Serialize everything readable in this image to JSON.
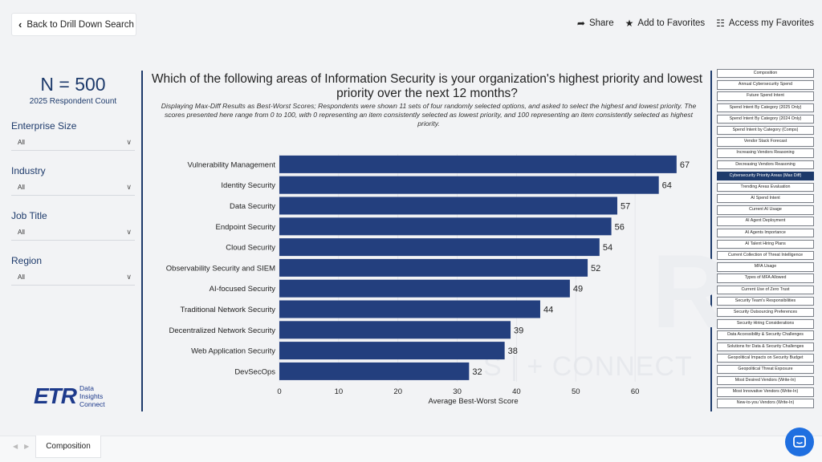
{
  "header": {
    "back_label": "Back to Drill Down Search",
    "share_label": "Share",
    "favorites_label": "Add to Favorites",
    "access_label": "Access my Favorites"
  },
  "left_panel": {
    "n_count": "N = 500",
    "n_sub": "2025 Respondent Count",
    "filters": [
      {
        "label": "Enterprise Size",
        "value": "All"
      },
      {
        "label": "Industry",
        "value": "All"
      },
      {
        "label": "Job Title",
        "value": "All"
      },
      {
        "label": "Region",
        "value": "All"
      }
    ]
  },
  "logo": {
    "mark": "ETR",
    "line1": "Data",
    "line2": "Insights",
    "line3": "Connect"
  },
  "watermark": "S | + CONNECT",
  "colors": {
    "bar": "#233f7e",
    "accent": "#1d3a6b",
    "chat": "#1f6fe0"
  },
  "chart_data": {
    "type": "bar",
    "orientation": "horizontal",
    "title": "Which of the following areas of Information Security is your organization's highest priority and lowest priority over the next 12 months?",
    "subtitle": "Displaying Max-Diff Results as Best-Worst Scores; Respondents were shown 11 sets of four randomly selected options, and asked to select the highest and lowest priority. The scores presented here range from 0 to 100, with 0 representing an item consistently selected as lowest priority, and 100 representing an item consistently selected as highest priority.",
    "categories": [
      "Vulnerability Management",
      "Identity Security",
      "Data Security",
      "Endpoint Security",
      "Cloud Security",
      "Observability Security and SIEM",
      "AI-focused Security",
      "Traditional Network Security",
      "Decentralized Network Security",
      "Web Application Security",
      "DevSecOps"
    ],
    "values": [
      67,
      64,
      57,
      56,
      54,
      52,
      49,
      44,
      39,
      38,
      32
    ],
    "xlabel": "Average Best-Worst Score",
    "ylabel": "",
    "xlim": [
      0,
      70
    ],
    "xticks": [
      0,
      10,
      20,
      30,
      40,
      50,
      60
    ],
    "grid": true
  },
  "sidebar": {
    "items": [
      "Composition",
      "Annual Cybersecurity Spend",
      "Future Spend Intent",
      "Spend Intent By Category (2025 Only)",
      "Spend Intent By Category (2024 Only)",
      "Spend Intent by Category (Comps)",
      "Vendor Stack Forecast",
      "Increasing Vendors Reasoning",
      "Decreasing Vendors Reasoning",
      "Cybersecurity Priority Areas (Max Diff)",
      "Trending Areas Evaluation",
      "AI Spend Intent",
      "Current AI Usage",
      "AI Agent Deployment",
      "AI Agents Importance",
      "AI Talent Hiring Plans",
      "Current Collection of Threat Intelligence",
      "MFA Usage",
      "Types of MFA Allowed",
      "Current Use of Zero Trust",
      "Security Team's Responsibilities",
      "Security Outsourcing Preferences",
      "Security Hiring Considerations",
      "Data Accessibility & Security Challenges",
      "Solutions for Data & Security Challenges",
      "Geopolitical Impacts on Security Budget",
      "Geopolitical Threat Exposure",
      "Most Desired Vendors (Write-In)",
      "Most Innovative Vendors (Write-In)",
      "New-to-you Vendors (Write-In)"
    ],
    "active_index": 9
  },
  "footer": {
    "tab_label": "Composition"
  }
}
